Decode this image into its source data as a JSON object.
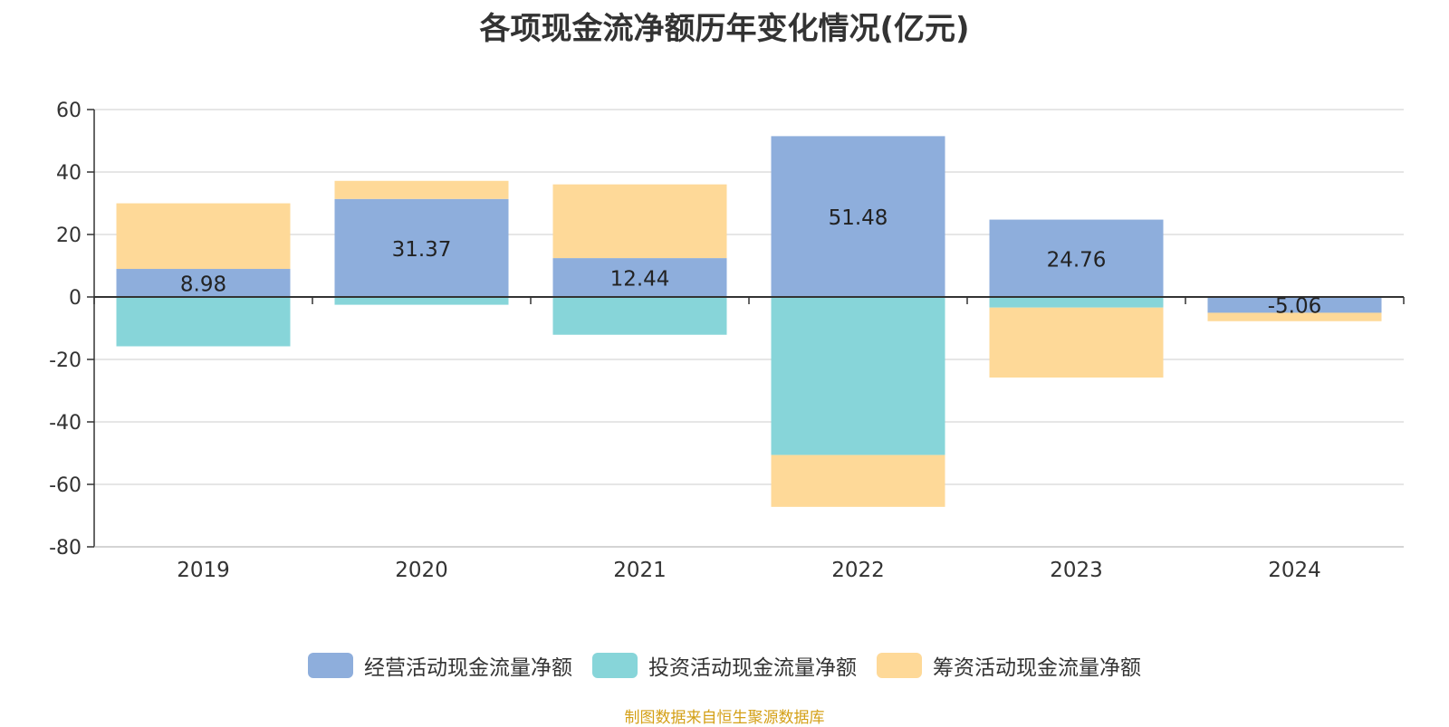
{
  "chart_data": {
    "type": "bar",
    "stacked": true,
    "title": "各项现金流净额历年变化情况(亿元)",
    "categories": [
      "2019",
      "2020",
      "2021",
      "2022",
      "2023",
      "2024"
    ],
    "series": [
      {
        "name": "经营活动现金流量净额",
        "values": [
          8.98,
          31.37,
          12.44,
          51.48,
          24.76,
          -5.06
        ],
        "color": "#8eaedc"
      },
      {
        "name": "投资活动现金流量净额",
        "values": [
          -15.8,
          -2.5,
          -12.1,
          -50.6,
          -3.4,
          0
        ],
        "color": "#87d5d9"
      },
      {
        "name": "筹资活动现金流量净额",
        "values": [
          21.0,
          5.8,
          23.6,
          -16.6,
          -22.4,
          -2.7
        ],
        "color": "#fed998"
      }
    ],
    "data_labels": [
      "8.98",
      "31.37",
      "12.44",
      "51.48",
      "24.76",
      "-5.06"
    ],
    "ylim": [
      -80,
      60
    ],
    "yticks": [
      60,
      40,
      20,
      0,
      -20,
      -40,
      -60,
      -80
    ],
    "xlabel": "",
    "ylabel": "",
    "legend_position": "bottom",
    "grid": true
  },
  "source_note": "制图数据来自恒生聚源数据库"
}
